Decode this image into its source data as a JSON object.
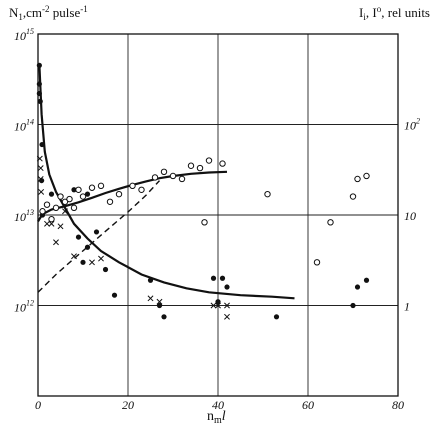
{
  "chart_data": {
    "type": "scatter",
    "title": "",
    "xlabel": "n_m l",
    "xlabel_main": "n",
    "xlabel_sub": "m",
    "xlabel_var": "l",
    "xlim": [
      0,
      80
    ],
    "x_ticks": [
      "0",
      "20",
      "40",
      "60",
      "80"
    ],
    "y_left": {
      "label": "N1,cm-2 pulse-1",
      "label_main": "N",
      "label_sub": "1",
      "label_unit1": ",cm",
      "label_exp1": "-2",
      "label_unit2": " pulse",
      "label_exp2": "-1",
      "scale": "log",
      "ylim": [
        100000000000.0,
        1000000000000000.0
      ],
      "ticks": [
        {
          "value": 1000000000000000.0,
          "base": "10",
          "exp": "15"
        },
        {
          "value": 100000000000000.0,
          "base": "10",
          "exp": "14"
        },
        {
          "value": 10000000000000.0,
          "base": "10",
          "exp": "13"
        },
        {
          "value": 1000000000000.0,
          "base": "10",
          "exp": "12"
        }
      ]
    },
    "y_right": {
      "label": "Ii, I0, rel units",
      "label_I1": "I",
      "label_sub1": "i",
      "label_mid": ", I",
      "label_sup2": "o",
      "label_rest": ", rel units",
      "scale": "log",
      "ylim": [
        0.1,
        1000
      ],
      "ticks": [
        {
          "value": 100,
          "text": "10",
          "exp": "2"
        },
        {
          "value": 10,
          "text": "10"
        },
        {
          "value": 1,
          "text": "1"
        }
      ]
    },
    "grid": true,
    "series": [
      {
        "marker": "filled-circle",
        "points": [
          [
            0.3,
            450000000000000.0
          ],
          [
            0.3,
            280000000000000.0
          ],
          [
            0.3,
            220000000000000.0
          ],
          [
            0.5,
            180000000000000.0
          ],
          [
            0.8,
            24000000000000.0
          ],
          [
            0.9,
            60000000000000.0
          ],
          [
            1.0,
            10000000000000.0
          ],
          [
            3,
            17000000000000.0
          ],
          [
            8,
            19000000000000.0
          ],
          [
            11,
            17000000000000.0
          ],
          [
            9,
            5700000000000.0
          ],
          [
            11,
            4400000000000.0
          ],
          [
            13,
            6500000000000.0
          ],
          [
            10,
            3000000000000.0
          ],
          [
            15,
            2500000000000.0
          ],
          [
            17,
            1300000000000.0
          ],
          [
            25,
            1900000000000.0
          ],
          [
            27,
            1000000000000.0
          ],
          [
            28,
            750000000000.0
          ],
          [
            39,
            2000000000000.0
          ],
          [
            41,
            2000000000000.0
          ],
          [
            42,
            1600000000000.0
          ],
          [
            40,
            1100000000000.0
          ],
          [
            53,
            750000000000.0
          ],
          [
            70,
            1000000000000.0
          ],
          [
            71,
            1600000000000.0
          ],
          [
            73,
            1900000000000.0
          ]
        ]
      },
      {
        "marker": "x",
        "points": [
          [
            0.4,
            42000000000000.0
          ],
          [
            0.6,
            33000000000000.0
          ],
          [
            0.6,
            25000000000000.0
          ],
          [
            0.7,
            18000000000000.0
          ],
          [
            2,
            8000000000000.0
          ],
          [
            3,
            8000000000000.0
          ],
          [
            4,
            5000000000000.0
          ],
          [
            5,
            7500000000000.0
          ],
          [
            6,
            11000000000000.0
          ],
          [
            8,
            3500000000000.0
          ],
          [
            12,
            3000000000000.0
          ],
          [
            14,
            3300000000000.0
          ],
          [
            25,
            1200000000000.0
          ],
          [
            27,
            1100000000000.0
          ],
          [
            39,
            1000000000000.0
          ],
          [
            40,
            1000000000000.0
          ],
          [
            42,
            1000000000000.0
          ],
          [
            42,
            750000000000.0
          ]
        ]
      },
      {
        "marker": "open-circle",
        "points": [
          [
            1,
            11
          ],
          [
            2,
            13
          ],
          [
            3,
            9
          ],
          [
            4,
            12
          ],
          [
            5,
            16
          ],
          [
            6,
            14
          ],
          [
            7,
            15
          ],
          [
            8,
            12
          ],
          [
            9,
            19
          ],
          [
            10,
            16
          ],
          [
            12,
            20
          ],
          [
            14,
            21
          ],
          [
            16,
            14
          ],
          [
            18,
            17
          ],
          [
            21,
            21
          ],
          [
            23,
            19
          ],
          [
            26,
            26
          ],
          [
            28,
            30
          ],
          [
            30,
            27
          ],
          [
            32,
            25
          ],
          [
            34,
            35
          ],
          [
            36,
            33
          ],
          [
            38,
            40
          ],
          [
            41,
            37
          ],
          [
            37,
            8.3
          ],
          [
            51,
            17
          ],
          [
            62,
            3.0
          ],
          [
            65,
            8.3
          ],
          [
            70,
            16
          ],
          [
            71,
            25
          ],
          [
            73,
            27
          ]
        ]
      }
    ],
    "curves": [
      {
        "style": "solid",
        "axis": "left",
        "points": [
          [
            0.3,
            450000000000000.0
          ],
          [
            0.8,
            130000000000000.0
          ],
          [
            1.5,
            50000000000000.0
          ],
          [
            2.5,
            28000000000000.0
          ],
          [
            4,
            18000000000000.0
          ],
          [
            6,
            12000000000000.0
          ],
          [
            8,
            8000000000000.0
          ],
          [
            11,
            5500000000000.0
          ],
          [
            14,
            4000000000000.0
          ],
          [
            18,
            3000000000000.0
          ],
          [
            23,
            2200000000000.0
          ],
          [
            28,
            1800000000000.0
          ],
          [
            33,
            1550000000000.0
          ],
          [
            38,
            1400000000000.0
          ],
          [
            45,
            1300000000000.0
          ],
          [
            52,
            1250000000000.0
          ],
          [
            57,
            1200000000000.0
          ]
        ]
      },
      {
        "style": "solid",
        "axis": "right",
        "points": [
          [
            0,
            8.5
          ],
          [
            1,
            10.2
          ],
          [
            3,
            11.5
          ],
          [
            6,
            12.5
          ],
          [
            9,
            13.8
          ],
          [
            12,
            15.5
          ],
          [
            15,
            17.5
          ],
          [
            18,
            19.5
          ],
          [
            21,
            21.5
          ],
          [
            24,
            23.5
          ],
          [
            27,
            25.5
          ],
          [
            30,
            27
          ],
          [
            34,
            28.5
          ],
          [
            38,
            29.5
          ],
          [
            42,
            30
          ]
        ]
      },
      {
        "style": "dashed",
        "axis": "right",
        "points": [
          [
            0,
            1.4
          ],
          [
            4,
            2.2
          ],
          [
            8,
            3.3
          ],
          [
            12,
            4.9
          ],
          [
            16,
            7.3
          ],
          [
            20,
            10.8
          ],
          [
            24,
            16.5
          ],
          [
            27,
            24
          ]
        ]
      }
    ]
  }
}
